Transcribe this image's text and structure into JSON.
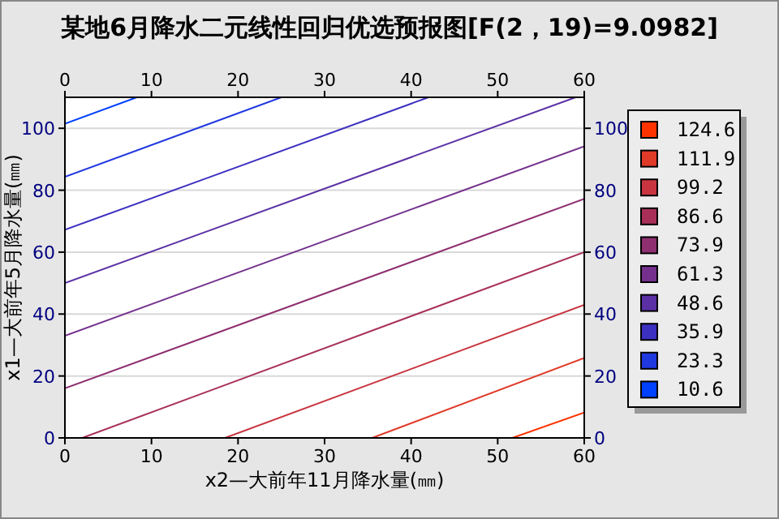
{
  "chart_data": {
    "type": "line",
    "title": "某地6月降水二元线性回归优选预报图[F(2，19)=9.0982]",
    "xlabel": "x2—大前年11月降水量(㎜)",
    "ylabel": "x1—大前年5月降水量(㎜)",
    "xlim": [
      0,
      60
    ],
    "xticks": [
      0,
      10,
      20,
      30,
      40,
      50,
      60
    ],
    "x2lim": [
      0,
      60
    ],
    "x2ticks": [
      0,
      10,
      20,
      30,
      40,
      50,
      60
    ],
    "ylim": [
      0,
      110
    ],
    "yticks": [
      0,
      20,
      40,
      60,
      80,
      100
    ],
    "y2lim": [
      0,
      110
    ],
    "y2ticks": [
      0,
      20,
      40,
      60,
      80,
      100
    ],
    "grid": "y",
    "legend": "right",
    "series": [
      {
        "name": "124.6",
        "color": "#ff3300",
        "x": [
          51.7,
          60
        ],
        "values": [
          0,
          8.2
        ]
      },
      {
        "name": "111.9",
        "color": "#e03a28",
        "x": [
          35.5,
          60
        ],
        "values": [
          0,
          25.8
        ]
      },
      {
        "name": "99.2",
        "color": "#c8343f",
        "x": [
          18.5,
          60
        ],
        "values": [
          0,
          43
        ]
      },
      {
        "name": "86.6",
        "color": "#a83058",
        "x": [
          2,
          60
        ],
        "values": [
          0,
          60
        ]
      },
      {
        "name": "73.9",
        "color": "#8e2f70",
        "x": [
          0,
          60
        ],
        "values": [
          16,
          77.2
        ]
      },
      {
        "name": "61.3",
        "color": "#74308c",
        "x": [
          0,
          60
        ],
        "values": [
          33,
          94.2
        ]
      },
      {
        "name": "48.6",
        "color": "#5a30a4",
        "x": [
          0,
          59
        ],
        "values": [
          50,
          110
        ]
      },
      {
        "name": "35.9",
        "color": "#3c30c0",
        "x": [
          0,
          42
        ],
        "values": [
          67.2,
          110
        ]
      },
      {
        "name": "23.3",
        "color": "#2038e0",
        "x": [
          0,
          25
        ],
        "values": [
          84.3,
          110
        ]
      },
      {
        "name": "10.6",
        "color": "#0040ff",
        "x": [
          0,
          8.3
        ],
        "values": [
          101.5,
          110
        ]
      }
    ]
  }
}
